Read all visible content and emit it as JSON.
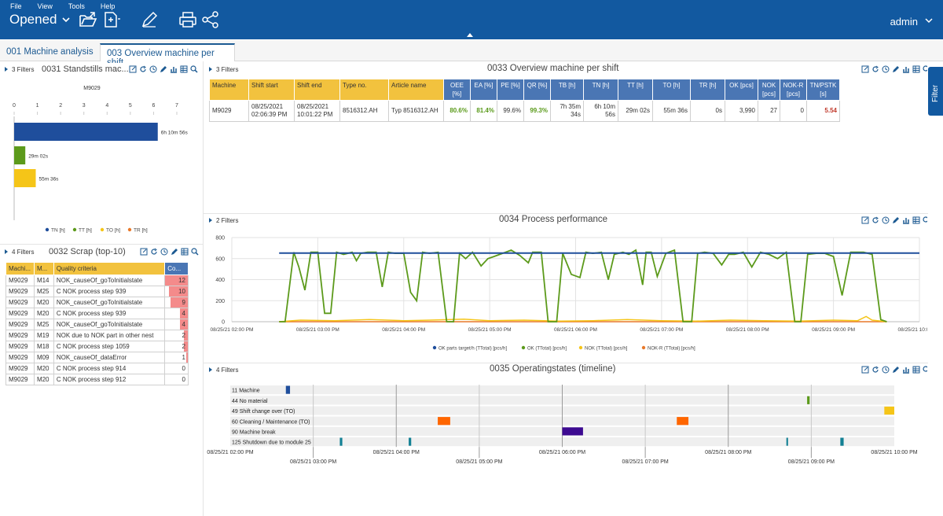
{
  "app": {
    "menu": [
      "File",
      "View",
      "Tools",
      "Help"
    ],
    "view_selector": "Opened",
    "user": "admin",
    "filter_tab": "Filter"
  },
  "tabs": [
    {
      "label": "001 Machine analysis",
      "active": false
    },
    {
      "label": "003 Overview machine per shift",
      "active": true
    }
  ],
  "p31": {
    "filters": "3 Filters",
    "title": "0031 Standstills mac...",
    "machine": "M9029",
    "chart_data": {
      "type": "bar",
      "orientation": "horizontal",
      "xticks": [
        "0",
        "1",
        "2",
        "3",
        "4",
        "5",
        "6",
        "7"
      ],
      "xlim": [
        0,
        7
      ],
      "series": [
        {
          "name": "TN [h]",
          "value": 6.18,
          "label": "6h 10m 56s",
          "color": "#1f4e9c"
        },
        {
          "name": "TT [h]",
          "value": 0.48,
          "label": "29m 02s",
          "color": "#5c9a1b"
        },
        {
          "name": "TO [h]",
          "value": 0.93,
          "label": "55m 36s",
          "color": "#f5c518"
        },
        {
          "name": "TR [h]",
          "value": 0,
          "label": "",
          "color": "#e8792a"
        }
      ],
      "legend_position": "bottom"
    }
  },
  "p32": {
    "filters": "4 Filters",
    "title": "0032 Scrap (top-10)",
    "headers": [
      "Machi...",
      "M...",
      "Quality criteria",
      "Co..."
    ],
    "rows": [
      {
        "machine": "M9029",
        "m": "M14",
        "criteria": "NOK_causeOf_goToInitialstate",
        "count": "12",
        "value": 12
      },
      {
        "machine": "M9029",
        "m": "M25",
        "criteria": "C NOK process step 939",
        "count": "10",
        "value": 10
      },
      {
        "machine": "M9029",
        "m": "M20",
        "criteria": "NOK_causeOf_goToInitialstate",
        "count": "9",
        "value": 9
      },
      {
        "machine": "M9029",
        "m": "M20",
        "criteria": "C NOK process step 939",
        "count": "4",
        "value": 4
      },
      {
        "machine": "M9029",
        "m": "M25",
        "criteria": "NOK_causeOf_goToInitialstate",
        "count": "4",
        "value": 4
      },
      {
        "machine": "M9029",
        "m": "M19",
        "criteria": "NOK due to NOK part in other nest",
        "count": "2",
        "value": 2
      },
      {
        "machine": "M9029",
        "m": "M18",
        "criteria": "C NOK process step 1059",
        "count": "2",
        "value": 2
      },
      {
        "machine": "M9029",
        "m": "M09",
        "criteria": "NOK_causeOf_dataError",
        "count": "1",
        "value": 1
      },
      {
        "machine": "M9029",
        "m": "M20",
        "criteria": "C NOK process step 914",
        "count": "0",
        "value": 0
      },
      {
        "machine": "M9029",
        "m": "M20",
        "criteria": "C NOK process step 912",
        "count": "0",
        "value": 0
      }
    ],
    "max": 12
  },
  "p33": {
    "filters": "3 Filters",
    "title": "0033 Overview machine per shift",
    "headers": [
      "Machine",
      "Shift start",
      "Shift end",
      "Type no.",
      "Article name",
      "OEE [%]",
      "EA [%]",
      "PE [%]",
      "QR [%]",
      "TB [h]",
      "TN [h]",
      "TT [h]",
      "TO [h]",
      "TR [h]",
      "OK [pcs]",
      "NOK [pcs]",
      "NOK-R [pcs]",
      "TN/PSTK [s]"
    ],
    "row": {
      "machine": "M9029",
      "shift_start": "08/25/2021 02:06:39 PM",
      "shift_end": "08/25/2021 10:01:22 PM",
      "type_no": "8516312.AH",
      "article": "Typ 8516312.AH",
      "oee": "80.6%",
      "ea": "81.4%",
      "pe": "99.6%",
      "qr": "99.3%",
      "tb": "7h 35m 34s",
      "tn": "6h 10m 56s",
      "tt": "29m 02s",
      "to": "55m 36s",
      "tr": "0s",
      "ok": "3,990",
      "nok": "27",
      "nokr": "0",
      "tnpstk": "5.54"
    }
  },
  "p34": {
    "filters": "2 Filters",
    "title": "0034 Process performance",
    "chart_data": {
      "type": "line",
      "yticks": [
        "0",
        "200",
        "400",
        "600",
        "800"
      ],
      "ylim": [
        0,
        800
      ],
      "xticks": [
        "08/25/21 02:00 PM",
        "08/25/21 03:00 PM",
        "08/25/21 04:00 PM",
        "08/25/21 05:00 PM",
        "08/25/21 06:00 PM",
        "08/25/21 07:00 PM",
        "08/25/21 08:00 PM",
        "08/25/21 09:00 PM",
        "08/25/21 10:00 PM"
      ],
      "xlim": [
        14,
        22
      ],
      "series": [
        {
          "name": "OK parts target/h (TTotal) [pcs/h]",
          "color": "#1f4e9c",
          "points": [
            [
              14.55,
              652
            ],
            [
              22,
              652
            ]
          ]
        },
        {
          "name": "OK (TTotal) [pcs/h]",
          "color": "#5c9a1b",
          "points": [
            [
              14.55,
              0
            ],
            [
              14.62,
              0
            ],
            [
              14.72,
              660
            ],
            [
              14.78,
              520
            ],
            [
              14.85,
              300
            ],
            [
              14.92,
              660
            ],
            [
              15.0,
              660
            ],
            [
              15.08,
              80
            ],
            [
              15.15,
              80
            ],
            [
              15.22,
              660
            ],
            [
              15.3,
              640
            ],
            [
              15.4,
              660
            ],
            [
              15.45,
              580
            ],
            [
              15.5,
              650
            ],
            [
              15.58,
              660
            ],
            [
              15.68,
              660
            ],
            [
              15.75,
              330
            ],
            [
              15.82,
              660
            ],
            [
              15.9,
              650
            ],
            [
              16.0,
              650
            ],
            [
              16.08,
              280
            ],
            [
              16.15,
              200
            ],
            [
              16.22,
              660
            ],
            [
              16.3,
              650
            ],
            [
              16.4,
              660
            ],
            [
              16.5,
              0
            ],
            [
              16.58,
              0
            ],
            [
              16.65,
              650
            ],
            [
              16.72,
              600
            ],
            [
              16.8,
              660
            ],
            [
              16.9,
              530
            ],
            [
              16.98,
              600
            ],
            [
              17.05,
              620
            ],
            [
              17.15,
              650
            ],
            [
              17.25,
              680
            ],
            [
              17.35,
              630
            ],
            [
              17.45,
              560
            ],
            [
              17.5,
              660
            ],
            [
              17.6,
              660
            ],
            [
              17.68,
              0
            ],
            [
              17.78,
              0
            ],
            [
              17.85,
              650
            ],
            [
              17.95,
              450
            ],
            [
              18.05,
              420
            ],
            [
              18.12,
              660
            ],
            [
              18.2,
              650
            ],
            [
              18.3,
              660
            ],
            [
              18.38,
              400
            ],
            [
              18.45,
              640
            ],
            [
              18.55,
              660
            ],
            [
              18.62,
              640
            ],
            [
              18.7,
              680
            ],
            [
              18.78,
              350
            ],
            [
              18.82,
              660
            ],
            [
              18.88,
              660
            ],
            [
              18.95,
              430
            ],
            [
              19.05,
              650
            ],
            [
              19.15,
              680
            ],
            [
              19.25,
              0
            ],
            [
              19.35,
              0
            ],
            [
              19.42,
              650
            ],
            [
              19.5,
              660
            ],
            [
              19.6,
              650
            ],
            [
              19.7,
              540
            ],
            [
              19.78,
              640
            ],
            [
              19.85,
              640
            ],
            [
              19.95,
              660
            ],
            [
              20.05,
              520
            ],
            [
              20.15,
              660
            ],
            [
              20.25,
              640
            ],
            [
              20.35,
              600
            ],
            [
              20.45,
              660
            ],
            [
              20.55,
              0
            ],
            [
              20.62,
              0
            ],
            [
              20.7,
              640
            ],
            [
              20.8,
              650
            ],
            [
              20.9,
              650
            ],
            [
              21.0,
              620
            ],
            [
              21.1,
              250
            ],
            [
              21.2,
              660
            ],
            [
              21.35,
              660
            ],
            [
              21.45,
              640
            ],
            [
              21.55,
              20
            ],
            [
              21.62,
              0
            ]
          ]
        },
        {
          "name": "NOK (TTotal) [pcs/h]",
          "color": "#f5c518",
          "points": [
            [
              14.55,
              0
            ],
            [
              14.8,
              15
            ],
            [
              15.2,
              10
            ],
            [
              15.6,
              20
            ],
            [
              16.0,
              10
            ],
            [
              16.3,
              15
            ],
            [
              16.7,
              25
            ],
            [
              17.0,
              10
            ],
            [
              17.4,
              15
            ],
            [
              17.8,
              5
            ],
            [
              18.2,
              10
            ],
            [
              18.6,
              20
            ],
            [
              19.0,
              10
            ],
            [
              19.4,
              5
            ],
            [
              19.8,
              15
            ],
            [
              20.2,
              10
            ],
            [
              20.6,
              5
            ],
            [
              21.0,
              15
            ],
            [
              21.28,
              10
            ],
            [
              21.38,
              50
            ],
            [
              21.45,
              15
            ],
            [
              21.62,
              0
            ]
          ]
        },
        {
          "name": "NOK-R (TTotal) [pcs/h]",
          "color": "#e8792a",
          "points": [
            [
              14.55,
              0
            ],
            [
              21.62,
              0
            ]
          ]
        }
      ],
      "legend_position": "bottom"
    }
  },
  "p35": {
    "filters": "4 Filters",
    "title": "0035 Operatingstates (timeline)",
    "chart_data": {
      "type": "timeline",
      "xlim": [
        14,
        22
      ],
      "ticks_top": [
        "08/25/21 02:00 PM",
        "08/25/21 04:00 PM",
        "08/25/21 06:00 PM",
        "08/25/21 08:00 PM",
        "08/25/21 10:00 PM"
      ],
      "ticks_bottom": [
        "08/25/21 03:00 PM",
        "08/25/21 05:00 PM",
        "08/25/21 07:00 PM",
        "08/25/21 09:00 PM"
      ],
      "rows": [
        {
          "label": "11 Machine",
          "color": "#1f4e9c",
          "segments": [
            [
              14.67,
              14.72
            ]
          ]
        },
        {
          "label": "44 No material",
          "color": "#5c9a1b",
          "segments": [
            [
              20.95,
              20.98
            ]
          ]
        },
        {
          "label": "49 Shift change over (TO)",
          "color": "#f5c518",
          "segments": [
            [
              21.88,
              22.0
            ]
          ]
        },
        {
          "label": "60 Cleaning / Maintenance (TO)",
          "color": "#ff6600",
          "segments": [
            [
              16.5,
              16.65
            ],
            [
              19.38,
              19.52
            ]
          ]
        },
        {
          "label": "90 Machine break",
          "color": "#3d0a91",
          "segments": [
            [
              18.0,
              18.25
            ]
          ]
        },
        {
          "label": "125 Shutdown due to module 25",
          "color": "#128094",
          "segments": [
            [
              15.32,
              15.35
            ],
            [
              16.15,
              16.18
            ],
            [
              20.7,
              20.72
            ],
            [
              21.35,
              21.39
            ]
          ]
        }
      ]
    }
  }
}
